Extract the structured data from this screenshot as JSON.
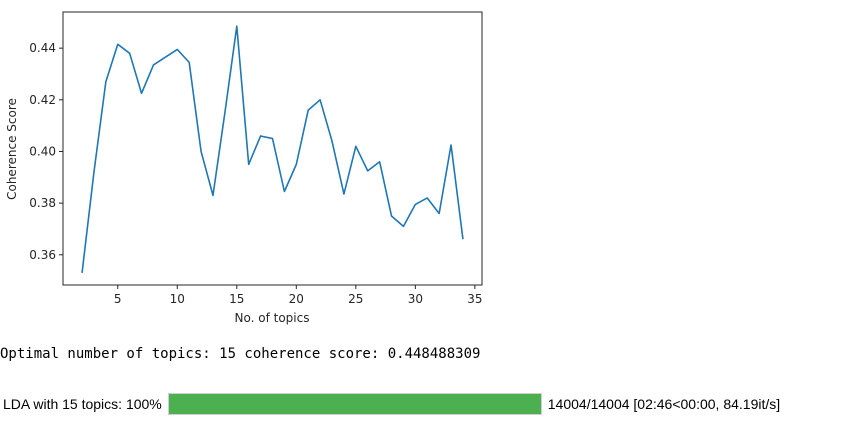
{
  "chart_data": {
    "type": "line",
    "xlabel": "No. of topics",
    "ylabel": "Coherence Score",
    "xlim": [
      0.4,
      35.6
    ],
    "ylim": [
      0.3483,
      0.454
    ],
    "xticks": [
      5,
      10,
      15,
      20,
      25,
      30,
      35
    ],
    "yticks": [
      0.36,
      0.38,
      0.4,
      0.42,
      0.44
    ],
    "ytick_labels": [
      "0.36",
      "0.38",
      "0.40",
      "0.42",
      "0.44"
    ],
    "grid": false,
    "line_color": "#1f77b4",
    "x": [
      2,
      3,
      4,
      5,
      6,
      7,
      8,
      9,
      10,
      11,
      12,
      13,
      14,
      15,
      16,
      17,
      18,
      19,
      20,
      21,
      22,
      23,
      24,
      25,
      26,
      27,
      28,
      29,
      30,
      31,
      32,
      33,
      34
    ],
    "y": [
      0.353,
      0.392,
      0.427,
      0.4415,
      0.438,
      0.4225,
      0.4335,
      0.4365,
      0.4395,
      0.4345,
      0.4,
      0.383,
      0.415,
      0.4485,
      0.395,
      0.406,
      0.405,
      0.3845,
      0.395,
      0.416,
      0.42,
      0.404,
      0.3835,
      0.402,
      0.3925,
      0.396,
      0.375,
      0.371,
      0.3795,
      0.382,
      0.376,
      0.4025,
      0.366
    ]
  },
  "output": {
    "optimal_text": "Optimal number of topics: 15 coherence score: 0.448488309"
  },
  "progress": {
    "prefix": "LDA with 15 topics: 100%",
    "fraction": 1.0,
    "status": "14004/14004 [02:46<00:00, 84.19it/s]",
    "fill_color": "#4caf50"
  }
}
